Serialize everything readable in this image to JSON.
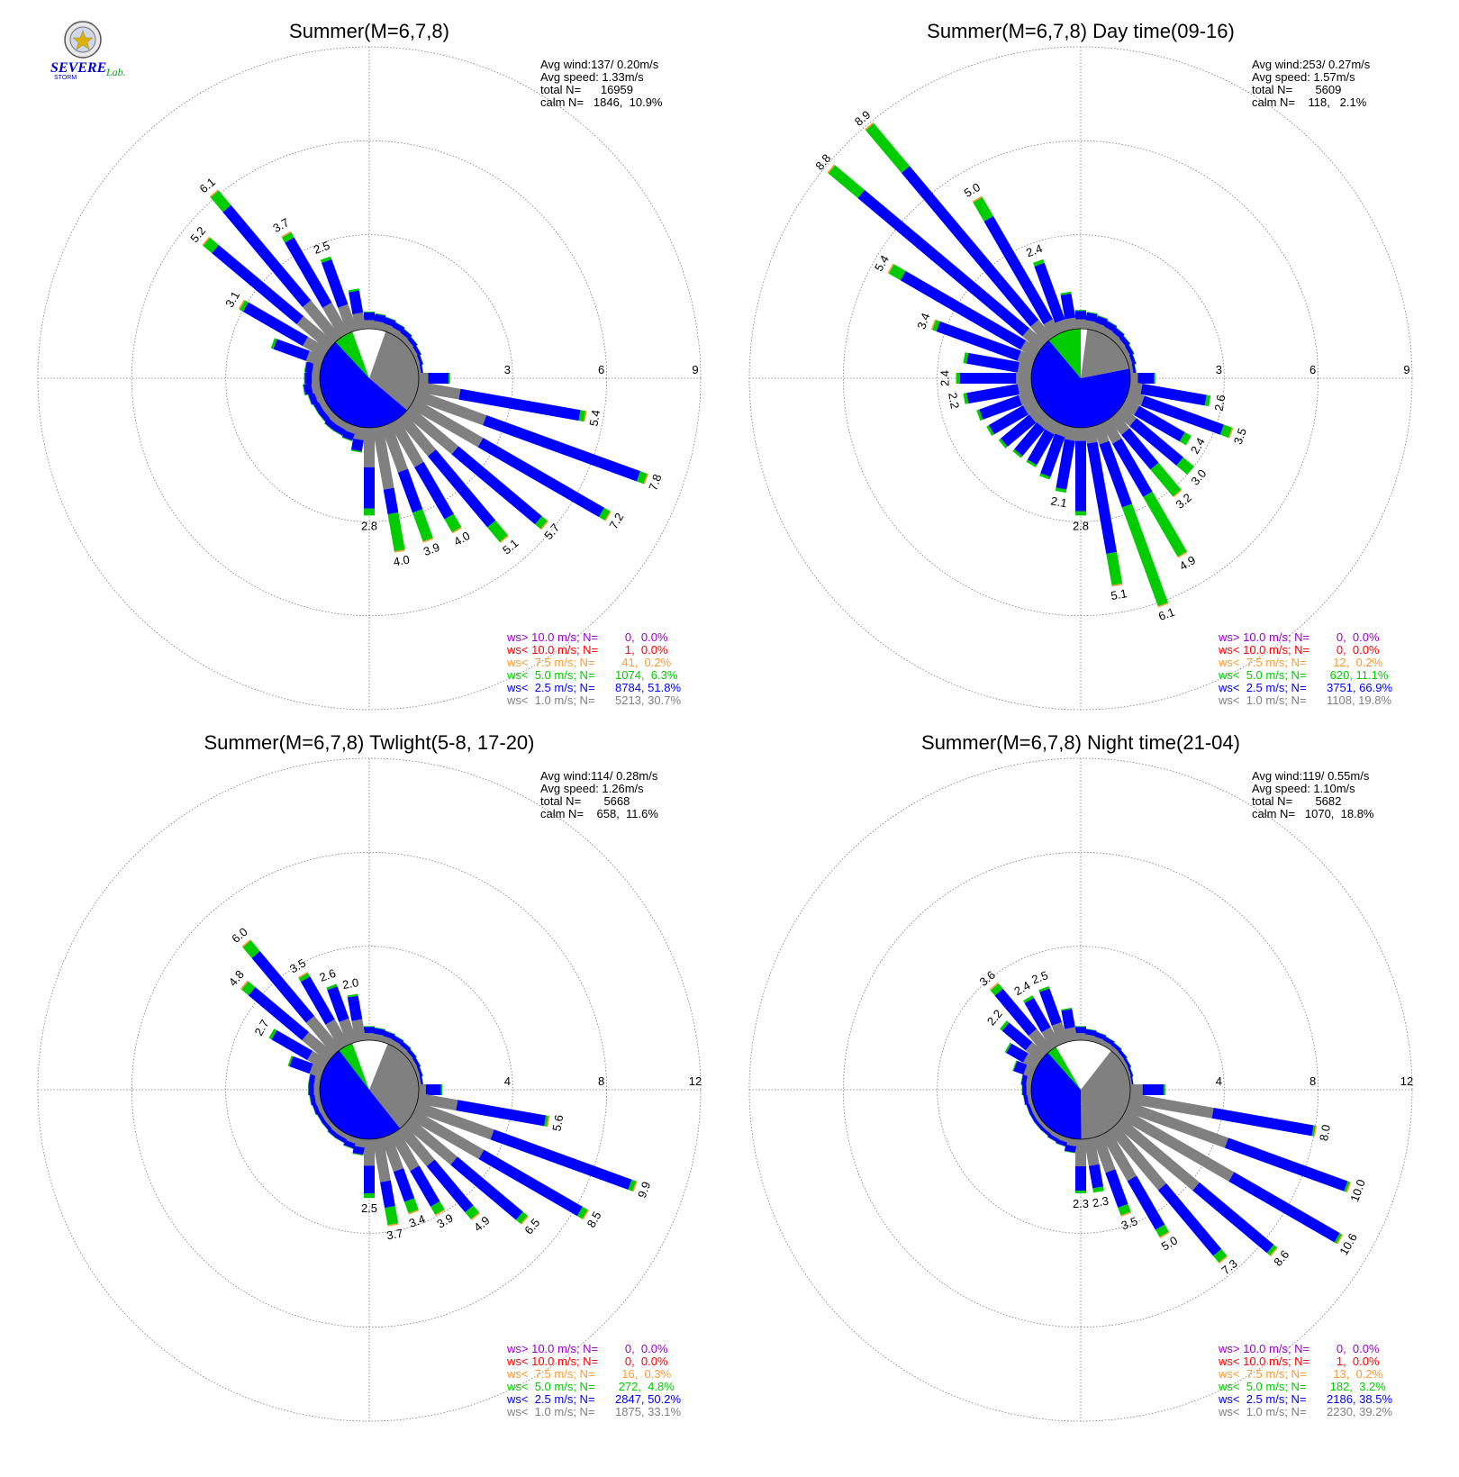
{
  "logo": {
    "word1": "SEVERE",
    "word2": "STORM",
    "word3": "Lab."
  },
  "colors": {
    "calm": "#808080",
    "lt1": "#808080",
    "lt2_5": "#0000ff",
    "lt5": "#00cc00",
    "lt7_5": "#ff9933",
    "lt10": "#ff0000",
    "gt10": "#9900cc",
    "grid": "#777777"
  },
  "legend_labels": [
    "ws> 10.0 m/s; N=",
    "ws< 10.0 m/s; N=",
    "ws<  7.5 m/s; N=",
    "ws<  5.0 m/s; N=",
    "ws<  2.5 m/s; N=",
    "ws<  1.0 m/s; N="
  ],
  "chart_data": [
    {
      "type": "windrose",
      "title": "Summer(M=6,7,8)",
      "stats": {
        "avg_wind": "Avg wind:137/ 0.20m/s",
        "avg_speed": "Avg speed: 1.33m/s",
        "total": "total N=      16959",
        "calm": "calm N=   1846,  10.9%"
      },
      "rings": [
        3,
        6,
        9
      ],
      "ring_labels": [
        "3",
        "6",
        "9"
      ],
      "calm_pct": 10.9,
      "calm_start_deg": 340,
      "lt1_pct": 30.7,
      "lt2_5_pct": 51.8,
      "lt5_pct": 6.3,
      "legend_values": [
        "   0,  0.0%",
        "   1,  0.0%",
        "  41,  0.2%",
        "1074,  6.3%",
        "8784, 51.8%",
        "5213, 30.7%"
      ],
      "directions_deg": [
        0,
        10,
        20,
        30,
        40,
        50,
        60,
        70,
        80,
        90,
        100,
        110,
        120,
        130,
        140,
        150,
        160,
        170,
        180,
        190,
        200,
        210,
        220,
        230,
        240,
        250,
        260,
        270,
        280,
        290,
        300,
        310,
        320,
        330,
        340,
        350
      ],
      "totals": [
        0.55,
        0.5,
        0.45,
        0.4,
        0.35,
        0.3,
        0.25,
        0.2,
        0.15,
        1.0,
        5.4,
        7.8,
        7.2,
        5.7,
        5.1,
        4.0,
        3.9,
        4.0,
        2.8,
        0.8,
        0.5,
        0.45,
        0.45,
        0.4,
        0.4,
        0.45,
        0.55,
        0.5,
        0.5,
        1.7,
        3.1,
        5.2,
        6.1,
        3.7,
        2.5,
        1.3
      ],
      "gray_frac": [
        0.5,
        0.5,
        0.5,
        0.5,
        0.5,
        0.5,
        0.5,
        0.5,
        0.5,
        0.3,
        0.25,
        0.3,
        0.35,
        0.35,
        0.3,
        0.4,
        0.4,
        0.5,
        0.45,
        0.5,
        0.5,
        0.5,
        0.5,
        0.5,
        0.5,
        0.5,
        0.5,
        0.5,
        0.5,
        0.3,
        0.25,
        0.25,
        0.25,
        0.3,
        0.35,
        0.4
      ],
      "green_frac": [
        0.05,
        0.05,
        0.05,
        0.05,
        0.05,
        0.05,
        0.05,
        0.05,
        0.05,
        0.05,
        0.03,
        0.03,
        0.03,
        0.04,
        0.12,
        0.12,
        0.25,
        0.3,
        0.08,
        0.05,
        0.05,
        0.05,
        0.05,
        0.05,
        0.05,
        0.05,
        0.05,
        0.05,
        0.05,
        0.05,
        0.04,
        0.07,
        0.1,
        0.05,
        0.04,
        0.05
      ],
      "value_labels": [
        "",
        "",
        "",
        "",
        "",
        "",
        "",
        "",
        "",
        "",
        "5.4",
        "7.8",
        "7.2",
        "5.7",
        "5.1",
        "4.0",
        "3.9",
        "4.0",
        "2.8",
        "",
        "",
        "",
        "",
        "",
        "",
        "",
        "",
        "",
        "",
        "",
        "3.1",
        "5.2",
        "6.1",
        "3.7",
        "2.5",
        ""
      ]
    },
    {
      "type": "windrose",
      "title": "Summer(M=6,7,8) Day time(09-16)",
      "stats": {
        "avg_wind": "Avg wind:253/ 0.27m/s",
        "avg_speed": "Avg speed: 1.57m/s",
        "total": "total N=       5609",
        "calm": "calm N=    118,   2.1%"
      },
      "rings": [
        3,
        6,
        9
      ],
      "ring_labels": [
        "3",
        "6",
        "9"
      ],
      "calm_pct": 2.1,
      "calm_start_deg": 0,
      "lt1_pct": 19.8,
      "lt2_5_pct": 66.9,
      "lt5_pct": 11.1,
      "legend_values": [
        "   0,  0.0%",
        "   0,  0.0%",
        "  12,  0.2%",
        " 620, 11.1%",
        "3751, 66.9%",
        "1108, 19.8%"
      ],
      "directions_deg": [
        0,
        10,
        20,
        30,
        40,
        50,
        60,
        70,
        80,
        90,
        100,
        110,
        120,
        130,
        140,
        150,
        160,
        170,
        180,
        190,
        200,
        210,
        220,
        230,
        240,
        250,
        260,
        270,
        280,
        290,
        300,
        310,
        320,
        330,
        340,
        350
      ],
      "totals": [
        0.6,
        0.55,
        0.5,
        0.45,
        0.4,
        0.35,
        0.3,
        0.25,
        0.2,
        0.8,
        2.6,
        3.5,
        2.4,
        3.0,
        3.2,
        4.9,
        6.1,
        5.1,
        2.8,
        2.1,
        1.8,
        1.6,
        1.6,
        1.7,
        1.8,
        1.9,
        2.2,
        2.4,
        2.2,
        3.4,
        5.4,
        8.8,
        8.9,
        5.0,
        2.4,
        1.2
      ],
      "gray_frac": [
        0.5,
        0.5,
        0.5,
        0.5,
        0.5,
        0.5,
        0.5,
        0.5,
        0.5,
        0.3,
        0.15,
        0.15,
        0.2,
        0.2,
        0.2,
        0.15,
        0.1,
        0.1,
        0.15,
        0.2,
        0.2,
        0.25,
        0.25,
        0.25,
        0.25,
        0.25,
        0.2,
        0.2,
        0.2,
        0.15,
        0.1,
        0.08,
        0.08,
        0.1,
        0.15,
        0.3
      ],
      "green_frac": [
        0.05,
        0.05,
        0.05,
        0.05,
        0.05,
        0.05,
        0.05,
        0.05,
        0.05,
        0.05,
        0.05,
        0.08,
        0.1,
        0.15,
        0.35,
        0.45,
        0.55,
        0.2,
        0.05,
        0.05,
        0.05,
        0.05,
        0.05,
        0.05,
        0.05,
        0.05,
        0.05,
        0.05,
        0.05,
        0.04,
        0.08,
        0.14,
        0.2,
        0.14,
        0.05,
        0.05
      ],
      "value_labels": [
        "",
        "",
        "",
        "",
        "",
        "",
        "",
        "",
        "",
        "",
        "2.6",
        "3.5",
        "2.4",
        "3.0",
        "3.2",
        "4.9",
        "6.1",
        "5.1",
        "2.8",
        "2.1",
        "",
        "",
        "",
        "",
        "",
        "",
        "2.2",
        "2.4",
        "",
        "3.4",
        "5.4",
        "8.8",
        "8.9",
        "5.0",
        "2.4",
        ""
      ]
    },
    {
      "type": "windrose",
      "title": "Summer(M=6,7,8) Twlight(5-8, 17-20)",
      "stats": {
        "avg_wind": "Avg wind:114/ 0.28m/s",
        "avg_speed": "Avg speed: 1.26m/s",
        "total": "total N=       5668",
        "calm": "calm N=    658,  11.6%"
      },
      "rings": [
        4,
        8,
        12
      ],
      "ring_labels": [
        "4",
        "8",
        "12"
      ],
      "calm_pct": 11.6,
      "calm_start_deg": 340,
      "lt1_pct": 33.1,
      "lt2_5_pct": 50.2,
      "lt5_pct": 4.8,
      "legend_values": [
        "   0,  0.0%",
        "   0,  0.0%",
        "  16,  0.3%",
        " 272,  4.8%",
        "2847, 50.2%",
        "1875, 33.1%"
      ],
      "directions_deg": [
        0,
        10,
        20,
        30,
        40,
        50,
        60,
        70,
        80,
        90,
        100,
        110,
        120,
        130,
        140,
        150,
        160,
        170,
        180,
        190,
        200,
        210,
        220,
        230,
        240,
        250,
        260,
        270,
        280,
        290,
        300,
        310,
        320,
        330,
        340,
        350
      ],
      "totals": [
        0.6,
        0.55,
        0.5,
        0.45,
        0.4,
        0.35,
        0.3,
        0.25,
        0.2,
        1.0,
        5.6,
        9.9,
        8.5,
        6.5,
        4.9,
        3.9,
        3.4,
        3.7,
        2.5,
        0.7,
        0.5,
        0.4,
        0.4,
        0.35,
        0.35,
        0.4,
        0.45,
        0.5,
        0.5,
        1.5,
        2.7,
        4.8,
        6.0,
        3.5,
        2.6,
        2.0
      ],
      "gray_frac": [
        0.5,
        0.5,
        0.5,
        0.5,
        0.5,
        0.5,
        0.5,
        0.5,
        0.5,
        0.3,
        0.3,
        0.35,
        0.4,
        0.4,
        0.4,
        0.45,
        0.45,
        0.5,
        0.45,
        0.5,
        0.5,
        0.5,
        0.5,
        0.5,
        0.5,
        0.5,
        0.5,
        0.5,
        0.5,
        0.35,
        0.3,
        0.3,
        0.3,
        0.35,
        0.4,
        0.45
      ],
      "green_frac": [
        0.05,
        0.05,
        0.05,
        0.05,
        0.05,
        0.05,
        0.05,
        0.05,
        0.05,
        0.05,
        0.02,
        0.02,
        0.03,
        0.04,
        0.08,
        0.1,
        0.15,
        0.2,
        0.08,
        0.05,
        0.05,
        0.05,
        0.05,
        0.05,
        0.05,
        0.05,
        0.05,
        0.05,
        0.05,
        0.05,
        0.05,
        0.08,
        0.1,
        0.05,
        0.04,
        0.04
      ],
      "value_labels": [
        "",
        "",
        "",
        "",
        "",
        "",
        "",
        "",
        "",
        "",
        "5.6",
        "9.9",
        "8.5",
        "6.5",
        "4.9",
        "3.9",
        "3.4",
        "3.7",
        "2.5",
        "",
        "",
        "",
        "",
        "",
        "",
        "",
        "",
        "",
        "",
        "",
        "2.7",
        "4.8",
        "6.0",
        "3.5",
        "2.6",
        "2.0"
      ]
    },
    {
      "type": "windrose",
      "title": "Summer(M=6,7,8) Night time(21-04)",
      "stats": {
        "avg_wind": "Avg wind:119/ 0.55m/s",
        "avg_speed": "Avg speed: 1.10m/s",
        "total": "total N=       5682",
        "calm": "calm N=   1070,  18.8%"
      },
      "rings": [
        4,
        8,
        12
      ],
      "ring_labels": [
        "4",
        "8",
        "12"
      ],
      "calm_pct": 18.8,
      "calm_start_deg": 330,
      "lt1_pct": 39.2,
      "lt2_5_pct": 38.5,
      "lt5_pct": 3.2,
      "legend_values": [
        "   0,  0.0%",
        "   1,  0.0%",
        "  13,  0.2%",
        " 182,  3.2%",
        "2186, 38.5%",
        "2230, 39.2%"
      ],
      "directions_deg": [
        0,
        10,
        20,
        30,
        40,
        50,
        60,
        70,
        80,
        90,
        100,
        110,
        120,
        130,
        140,
        150,
        160,
        170,
        180,
        190,
        200,
        210,
        220,
        230,
        240,
        250,
        260,
        270,
        280,
        290,
        300,
        310,
        320,
        330,
        340,
        350
      ],
      "totals": [
        0.6,
        0.5,
        0.45,
        0.4,
        0.35,
        0.3,
        0.25,
        0.2,
        0.15,
        1.5,
        8.0,
        10.0,
        10.6,
        8.6,
        7.3,
        5.0,
        3.5,
        2.3,
        2.3,
        0.6,
        0.4,
        0.35,
        0.3,
        0.3,
        0.3,
        0.3,
        0.35,
        0.4,
        0.45,
        0.9,
        1.5,
        2.2,
        3.6,
        2.4,
        2.5,
        1.4
      ],
      "gray_frac": [
        0.5,
        0.5,
        0.5,
        0.5,
        0.5,
        0.5,
        0.5,
        0.5,
        0.5,
        0.35,
        0.45,
        0.45,
        0.5,
        0.5,
        0.45,
        0.45,
        0.45,
        0.5,
        0.5,
        0.5,
        0.5,
        0.5,
        0.5,
        0.5,
        0.5,
        0.5,
        0.5,
        0.5,
        0.5,
        0.45,
        0.4,
        0.35,
        0.3,
        0.35,
        0.35,
        0.4
      ],
      "green_frac": [
        0.05,
        0.05,
        0.05,
        0.05,
        0.05,
        0.05,
        0.05,
        0.05,
        0.05,
        0.05,
        0.01,
        0.01,
        0.01,
        0.02,
        0.05,
        0.07,
        0.1,
        0.08,
        0.05,
        0.05,
        0.05,
        0.05,
        0.05,
        0.05,
        0.05,
        0.05,
        0.05,
        0.05,
        0.05,
        0.05,
        0.05,
        0.06,
        0.08,
        0.05,
        0.04,
        0.04
      ],
      "value_labels": [
        "",
        "",
        "",
        "",
        "",
        "",
        "",
        "",
        "",
        "",
        "8.0",
        "10.0",
        "10.6",
        "8.6",
        "7.3",
        "5.0",
        "3.5",
        "2.3",
        "2.3",
        "",
        "",
        "",
        "",
        "",
        "",
        "",
        "",
        "",
        "",
        "",
        "",
        "2.2",
        "3.6",
        "2.4",
        "2.5",
        ""
      ]
    }
  ]
}
